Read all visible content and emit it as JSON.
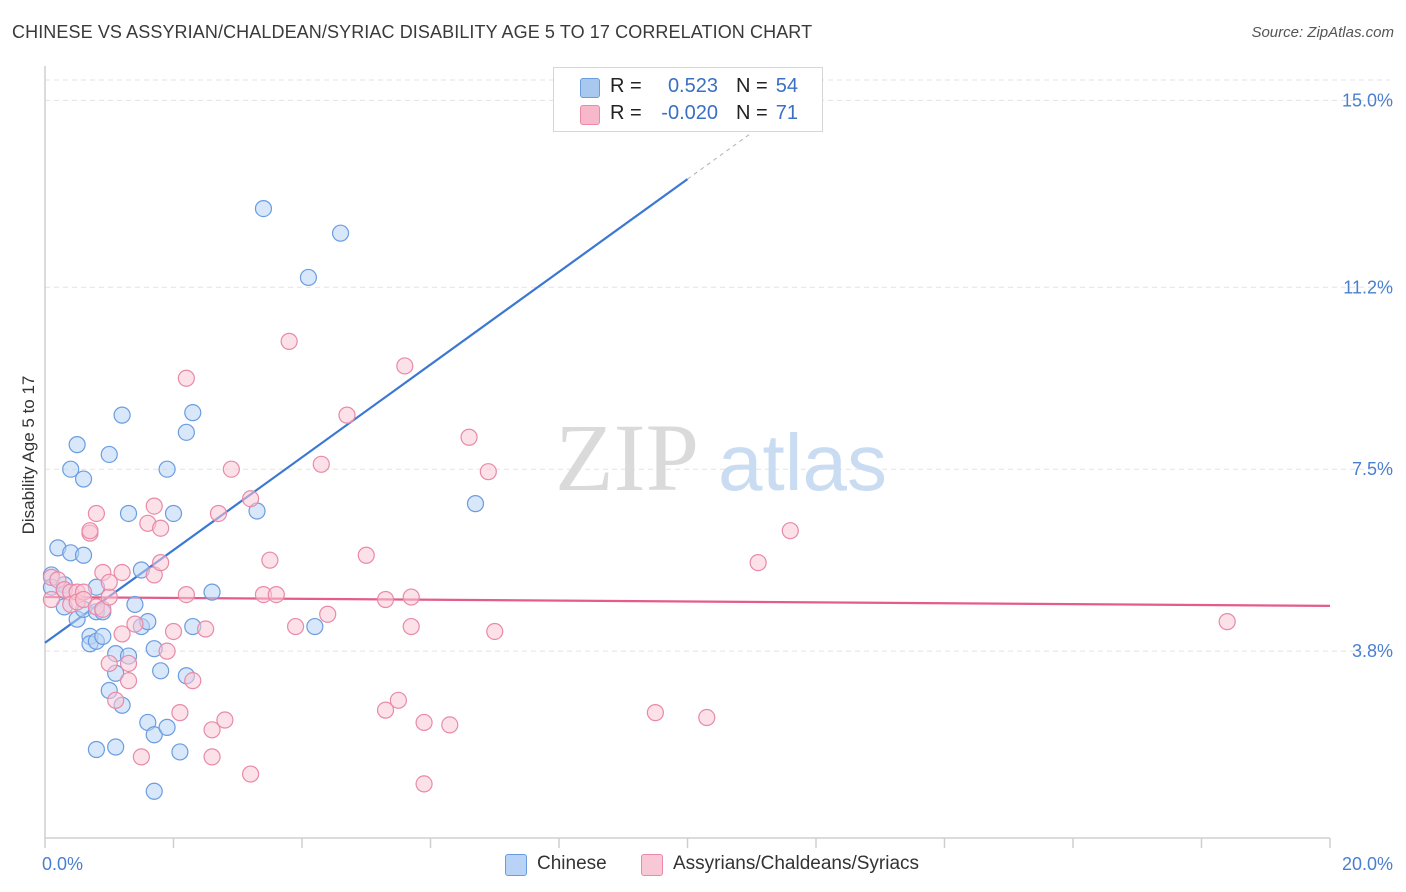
{
  "title": "CHINESE VS ASSYRIAN/CHALDEAN/SYRIAC DISABILITY AGE 5 TO 17 CORRELATION CHART",
  "source": "Source: ZipAtlas.com",
  "watermark": {
    "zip": "ZIP",
    "atlas": "atlas"
  },
  "legend": {
    "rows": [
      {
        "r_label": "R =",
        "r_value": "0.523",
        "n_label": "N =",
        "n_value": "54",
        "color": "#a8c8f0",
        "border": "#6a9de0"
      },
      {
        "r_label": "R =",
        "r_value": "-0.020",
        "n_label": "N =",
        "n_value": "71",
        "color": "#f7b8cc",
        "border": "#e88aa8"
      }
    ]
  },
  "bottom_legend": [
    {
      "label": "Chinese",
      "color": "#b8d3f5",
      "border": "#6a9de0"
    },
    {
      "label": "Assyrians/Chaldeans/Syriacs",
      "color": "#f9c8d6",
      "border": "#e88aa8"
    }
  ],
  "chart_data": {
    "type": "scatter",
    "title": "CHINESE VS ASSYRIAN/CHALDEAN/SYRIAC DISABILITY AGE 5 TO 17 CORRELATION CHART",
    "xlabel": "",
    "ylabel": "Disability Age 5 to 17",
    "xlim": [
      0,
      20
    ],
    "ylim": [
      0,
      15.7
    ],
    "x_ticks": [
      0,
      20
    ],
    "x_tick_labels": [
      "0.0%",
      "20.0%"
    ],
    "y_ticks": [
      3.8,
      7.5,
      11.2,
      15.0
    ],
    "y_tick_labels": [
      "3.8%",
      "7.5%",
      "11.2%",
      "15.0%"
    ],
    "grid": true,
    "legend_position": "top-center",
    "series": [
      {
        "name": "Chinese",
        "color": "#6a9de0",
        "fill": "#b8d3f5",
        "trend": {
          "x0": 0,
          "y0": 3.97,
          "x1": 10,
          "y1": 13.4,
          "dashed_to_x": 11.0,
          "color": "#3a78d4"
        },
        "points": [
          [
            0.1,
            5.35
          ],
          [
            0.1,
            5.1
          ],
          [
            0.2,
            5.9
          ],
          [
            0.3,
            5.15
          ],
          [
            0.3,
            5.05
          ],
          [
            0.3,
            4.7
          ],
          [
            0.4,
            5.8
          ],
          [
            0.4,
            7.5
          ],
          [
            0.5,
            4.45
          ],
          [
            0.5,
            8.0
          ],
          [
            0.6,
            5.75
          ],
          [
            0.6,
            7.3
          ],
          [
            0.6,
            4.65
          ],
          [
            0.7,
            4.1
          ],
          [
            0.7,
            3.95
          ],
          [
            0.8,
            5.1
          ],
          [
            0.8,
            4.6
          ],
          [
            0.8,
            4.0
          ],
          [
            0.8,
            1.8
          ],
          [
            0.9,
            4.6
          ],
          [
            0.9,
            4.1
          ],
          [
            1.0,
            3.0
          ],
          [
            1.0,
            7.8
          ],
          [
            1.1,
            3.35
          ],
          [
            1.1,
            1.85
          ],
          [
            1.1,
            3.75
          ],
          [
            1.2,
            2.7
          ],
          [
            1.2,
            8.6
          ],
          [
            1.3,
            6.6
          ],
          [
            1.3,
            3.7
          ],
          [
            1.4,
            4.75
          ],
          [
            1.5,
            4.3
          ],
          [
            1.5,
            5.45
          ],
          [
            1.6,
            4.4
          ],
          [
            1.6,
            2.35
          ],
          [
            1.7,
            2.1
          ],
          [
            1.7,
            3.85
          ],
          [
            1.7,
            0.95
          ],
          [
            1.8,
            3.4
          ],
          [
            1.9,
            2.25
          ],
          [
            1.9,
            7.5
          ],
          [
            2.0,
            6.6
          ],
          [
            2.1,
            1.75
          ],
          [
            2.2,
            3.3
          ],
          [
            2.2,
            8.25
          ],
          [
            2.3,
            4.3
          ],
          [
            2.3,
            8.65
          ],
          [
            2.6,
            5.0
          ],
          [
            3.3,
            6.65
          ],
          [
            3.4,
            12.8
          ],
          [
            4.1,
            11.4
          ],
          [
            4.2,
            4.3
          ],
          [
            4.6,
            12.3
          ],
          [
            6.7,
            6.8
          ]
        ]
      },
      {
        "name": "Assyrians/Chaldeans/Syriacs",
        "color": "#e88aa8",
        "fill": "#f9c8d6",
        "trend": {
          "x0": 0,
          "y0": 4.9,
          "x1": 20,
          "y1": 4.72,
          "color": "#e35c8c"
        },
        "points": [
          [
            0.1,
            5.3
          ],
          [
            0.1,
            4.85
          ],
          [
            0.2,
            5.25
          ],
          [
            0.3,
            5.05
          ],
          [
            0.4,
            5.0
          ],
          [
            0.4,
            4.75
          ],
          [
            0.5,
            5.0
          ],
          [
            0.5,
            4.8
          ],
          [
            0.6,
            5.0
          ],
          [
            0.6,
            4.85
          ],
          [
            0.7,
            6.2
          ],
          [
            0.7,
            6.25
          ],
          [
            0.8,
            6.6
          ],
          [
            0.8,
            4.7
          ],
          [
            0.9,
            5.4
          ],
          [
            0.9,
            4.65
          ],
          [
            1.0,
            4.9
          ],
          [
            1.0,
            5.2
          ],
          [
            1.0,
            3.55
          ],
          [
            1.1,
            2.8
          ],
          [
            1.2,
            5.4
          ],
          [
            1.2,
            4.15
          ],
          [
            1.3,
            3.2
          ],
          [
            1.3,
            3.55
          ],
          [
            1.4,
            4.35
          ],
          [
            1.5,
            1.65
          ],
          [
            1.6,
            6.4
          ],
          [
            1.7,
            6.75
          ],
          [
            1.7,
            5.35
          ],
          [
            1.8,
            5.6
          ],
          [
            1.8,
            6.3
          ],
          [
            1.9,
            3.8
          ],
          [
            2.0,
            4.2
          ],
          [
            2.1,
            2.55
          ],
          [
            2.2,
            4.95
          ],
          [
            2.2,
            9.35
          ],
          [
            2.3,
            3.2
          ],
          [
            2.5,
            4.25
          ],
          [
            2.6,
            1.65
          ],
          [
            2.6,
            2.2
          ],
          [
            2.7,
            6.6
          ],
          [
            2.8,
            2.4
          ],
          [
            2.9,
            7.5
          ],
          [
            3.2,
            1.3
          ],
          [
            3.2,
            6.9
          ],
          [
            3.4,
            4.95
          ],
          [
            3.5,
            5.65
          ],
          [
            3.6,
            4.95
          ],
          [
            3.8,
            10.1
          ],
          [
            3.9,
            4.3
          ],
          [
            4.3,
            7.6
          ],
          [
            4.4,
            4.55
          ],
          [
            4.7,
            8.6
          ],
          [
            5.0,
            5.75
          ],
          [
            5.3,
            2.6
          ],
          [
            5.3,
            4.85
          ],
          [
            5.5,
            2.8
          ],
          [
            5.6,
            9.6
          ],
          [
            5.7,
            4.3
          ],
          [
            5.7,
            4.9
          ],
          [
            5.9,
            2.35
          ],
          [
            5.9,
            1.1
          ],
          [
            6.3,
            2.3
          ],
          [
            6.6,
            8.15
          ],
          [
            6.9,
            7.45
          ],
          [
            7.0,
            4.2
          ],
          [
            9.5,
            2.55
          ],
          [
            10.3,
            2.45
          ],
          [
            11.1,
            5.6
          ],
          [
            11.6,
            6.25
          ],
          [
            18.4,
            4.4
          ]
        ]
      }
    ]
  }
}
